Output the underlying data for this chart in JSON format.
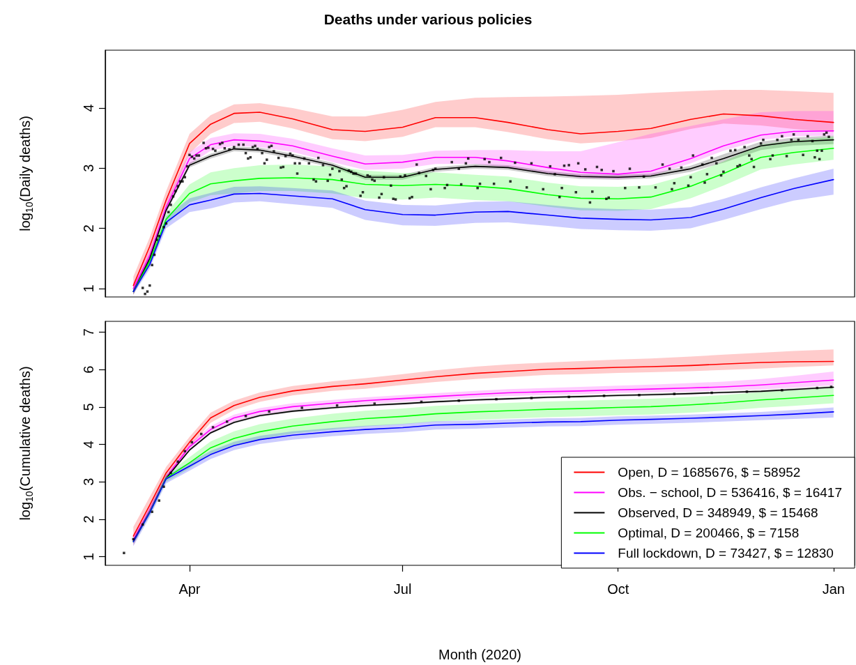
{
  "chart_data": [
    {
      "type": "line",
      "title": "Deaths under various policies",
      "ylabel": "log$_{10}$(Daily deaths)",
      "xlim": [
        "2020-02-25",
        "2021-01-10"
      ],
      "ylim": [
        0.86,
        4.96
      ],
      "yticks": [
        1,
        2,
        3,
        4
      ],
      "tick_labels": "y",
      "legend": false,
      "x": [
        "2020-03-08",
        "2020-03-15",
        "2020-03-22",
        "2020-04-01",
        "2020-04-10",
        "2020-04-20",
        "2020-05-01",
        "2020-05-15",
        "2020-06-01",
        "2020-06-15",
        "2020-07-01",
        "2020-07-15",
        "2020-08-01",
        "2020-08-15",
        "2020-09-01",
        "2020-09-15",
        "2020-10-01",
        "2020-10-15",
        "2020-11-01",
        "2020-11-15",
        "2020-12-01",
        "2020-12-15",
        "2021-01-01"
      ],
      "series": [
        {
          "color": "#ff0000",
          "values": [
            1.05,
            1.7,
            2.47,
            3.41,
            3.73,
            3.91,
            3.93,
            3.82,
            3.64,
            3.61,
            3.68,
            3.84,
            3.84,
            3.76,
            3.64,
            3.57,
            3.61,
            3.66,
            3.81,
            3.9,
            3.87,
            3.81,
            3.76
          ],
          "lower": [
            0.89,
            1.54,
            2.31,
            3.25,
            3.57,
            3.75,
            3.77,
            3.66,
            3.48,
            3.45,
            3.52,
            3.68,
            3.68,
            3.6,
            3.48,
            3.41,
            3.45,
            3.5,
            3.65,
            3.74,
            3.71,
            3.65,
            3.6
          ],
          "upper": [
            1.2,
            1.85,
            2.62,
            3.57,
            3.88,
            4.06,
            4.08,
            4.0,
            3.86,
            3.86,
            3.97,
            4.1,
            4.17,
            4.18,
            4.19,
            4.2,
            4.22,
            4.25,
            4.28,
            4.3,
            4.3,
            4.28,
            4.25
          ]
        },
        {
          "color": "#ff00ff",
          "values": [
            1.0,
            1.55,
            2.35,
            3.16,
            3.39,
            3.47,
            3.45,
            3.37,
            3.2,
            3.07,
            3.1,
            3.18,
            3.18,
            3.12,
            3.01,
            2.93,
            2.9,
            2.95,
            3.16,
            3.37,
            3.55,
            3.61,
            3.62
          ],
          "lower": [
            0.9,
            1.45,
            2.25,
            3.06,
            3.29,
            3.37,
            3.35,
            3.27,
            3.1,
            2.97,
            2.99,
            3.07,
            3.07,
            3.01,
            2.91,
            2.84,
            2.82,
            2.87,
            3.08,
            3.29,
            3.47,
            3.53,
            3.54
          ],
          "upper": [
            1.1,
            1.65,
            2.45,
            3.27,
            3.5,
            3.58,
            3.57,
            3.49,
            3.33,
            3.21,
            3.22,
            3.29,
            3.3,
            3.3,
            3.28,
            3.28,
            3.43,
            3.57,
            3.7,
            3.81,
            3.93,
            3.95,
            3.95
          ]
        },
        {
          "color": "#000000",
          "values": [
            0.95,
            1.5,
            2.3,
            3.05,
            3.2,
            3.32,
            3.3,
            3.2,
            3.05,
            2.85,
            2.85,
            2.98,
            3.03,
            3.01,
            2.91,
            2.86,
            2.85,
            2.87,
            2.99,
            3.16,
            3.37,
            3.44,
            3.47
          ],
          "lower": [
            0.91,
            1.46,
            2.26,
            3.01,
            3.16,
            3.28,
            3.26,
            3.16,
            3.01,
            2.81,
            2.81,
            2.94,
            2.99,
            2.97,
            2.87,
            2.82,
            2.81,
            2.83,
            2.94,
            3.09,
            3.3,
            3.37,
            3.4
          ],
          "upper": [
            0.99,
            1.54,
            2.34,
            3.09,
            3.24,
            3.36,
            3.34,
            3.24,
            3.09,
            2.89,
            2.89,
            3.02,
            3.07,
            3.05,
            2.95,
            2.9,
            2.89,
            2.91,
            3.04,
            3.23,
            3.44,
            3.51,
            3.54
          ]
        },
        {
          "color": "#00ff00",
          "values": [
            0.95,
            1.45,
            2.15,
            2.58,
            2.74,
            2.79,
            2.83,
            2.84,
            2.81,
            2.73,
            2.71,
            2.73,
            2.7,
            2.66,
            2.56,
            2.5,
            2.49,
            2.52,
            2.7,
            2.91,
            3.18,
            3.26,
            3.33
          ],
          "lower": [
            0.9,
            1.38,
            2.05,
            2.43,
            2.55,
            2.58,
            2.62,
            2.62,
            2.58,
            2.5,
            2.48,
            2.51,
            2.47,
            2.45,
            2.36,
            2.3,
            2.29,
            2.32,
            2.5,
            2.71,
            2.98,
            3.06,
            3.14
          ],
          "upper": [
            1.0,
            1.52,
            2.25,
            2.73,
            2.93,
            3.0,
            3.05,
            3.06,
            3.03,
            2.96,
            2.92,
            2.93,
            2.89,
            2.86,
            2.76,
            2.7,
            2.69,
            2.72,
            2.9,
            3.11,
            3.39,
            3.46,
            3.52
          ]
        },
        {
          "color": "#0000ff",
          "values": [
            0.95,
            1.4,
            2.1,
            2.39,
            2.47,
            2.57,
            2.58,
            2.54,
            2.49,
            2.31,
            2.23,
            2.22,
            2.27,
            2.28,
            2.22,
            2.17,
            2.15,
            2.14,
            2.18,
            2.32,
            2.51,
            2.66,
            2.81
          ],
          "lower": [
            0.9,
            1.33,
            2.0,
            2.27,
            2.33,
            2.43,
            2.45,
            2.4,
            2.34,
            2.14,
            2.05,
            2.04,
            2.09,
            2.1,
            2.04,
            1.99,
            1.97,
            1.96,
            2.0,
            2.14,
            2.32,
            2.46,
            2.56
          ],
          "upper": [
            1.0,
            1.47,
            2.2,
            2.5,
            2.59,
            2.69,
            2.7,
            2.67,
            2.63,
            2.46,
            2.39,
            2.38,
            2.44,
            2.45,
            2.39,
            2.34,
            2.32,
            2.31,
            2.35,
            2.49,
            2.68,
            2.83,
            2.99
          ]
        },
        {
          "type": "scatter",
          "marker": "square",
          "color": "#000000",
          "x": [
            "2020-03-12",
            "2020-03-13",
            "2020-03-14",
            "2020-03-15",
            "2020-03-16",
            "2020-03-17",
            "2020-03-18",
            "2020-03-19",
            "2020-03-21",
            "2020-03-22",
            "2020-03-23",
            "2020-03-24",
            "2020-03-25",
            "2020-03-26",
            "2020-03-27",
            "2020-03-28",
            "2020-03-29",
            "2020-03-30",
            "2020-03-31",
            "2020-04-01",
            "2020-04-02",
            "2020-04-03",
            "2020-04-04",
            "2020-04-05",
            "2020-04-07",
            "2020-04-08",
            "2020-04-09",
            "2020-04-11",
            "2020-04-12",
            "2020-04-14",
            "2020-04-15",
            "2020-04-16",
            "2020-04-18",
            "2020-04-20",
            "2020-04-22",
            "2020-04-24",
            "2020-04-25",
            "2020-04-26",
            "2020-04-27",
            "2020-04-28",
            "2020-04-29",
            "2020-04-30",
            "2020-05-02",
            "2020-05-03",
            "2020-05-04",
            "2020-05-05",
            "2020-05-06",
            "2020-05-07",
            "2020-05-09",
            "2020-05-10",
            "2020-05-11",
            "2020-05-12",
            "2020-05-14",
            "2020-05-15",
            "2020-05-16",
            "2020-05-17",
            "2020-05-18",
            "2020-05-20",
            "2020-05-22",
            "2020-05-24",
            "2020-05-25",
            "2020-05-26",
            "2020-05-28",
            "2020-05-30",
            "2020-05-31",
            "2020-06-01",
            "2020-06-04",
            "2020-06-05",
            "2020-06-06",
            "2020-06-07",
            "2020-06-08",
            "2020-06-09",
            "2020-06-10",
            "2020-06-11",
            "2020-06-13",
            "2020-06-14",
            "2020-06-16",
            "2020-06-17",
            "2020-06-18",
            "2020-06-19",
            "2020-06-21",
            "2020-06-22",
            "2020-06-23",
            "2020-06-26",
            "2020-06-27",
            "2020-06-28",
            "2020-06-30",
            "2020-07-02",
            "2020-07-04",
            "2020-07-05",
            "2020-07-07",
            "2020-07-08",
            "2020-07-11",
            "2020-07-13",
            "2020-07-14",
            "2020-07-15",
            "2020-07-19",
            "2020-07-20",
            "2020-07-22",
            "2020-07-25",
            "2020-07-26",
            "2020-07-28",
            "2020-07-29",
            "2020-08-02",
            "2020-08-03",
            "2020-08-05",
            "2020-08-07",
            "2020-08-09",
            "2020-08-12",
            "2020-08-16",
            "2020-08-18",
            "2020-08-23",
            "2020-08-25",
            "2020-08-30",
            "2020-09-02",
            "2020-09-04",
            "2020-09-06",
            "2020-09-07",
            "2020-09-08",
            "2020-09-10",
            "2020-09-13",
            "2020-09-14",
            "2020-09-17",
            "2020-09-19",
            "2020-09-20",
            "2020-09-22",
            "2020-09-24",
            "2020-09-26",
            "2020-09-27",
            "2020-09-29",
            "2020-10-04",
            "2020-10-06",
            "2020-10-10",
            "2020-10-12",
            "2020-10-17",
            "2020-10-20",
            "2020-10-23",
            "2020-10-24",
            "2020-10-25",
            "2020-10-28",
            "2020-10-31",
            "2020-11-01",
            "2020-11-02",
            "2020-11-06",
            "2020-11-07",
            "2020-11-08",
            "2020-11-10",
            "2020-11-12",
            "2020-11-14",
            "2020-11-15",
            "2020-11-18",
            "2020-11-20",
            "2020-11-21",
            "2020-11-22",
            "2020-11-24",
            "2020-11-26",
            "2020-11-27",
            "2020-11-28",
            "2020-12-01",
            "2020-12-02",
            "2020-12-05",
            "2020-12-06",
            "2020-12-08",
            "2020-12-10",
            "2020-12-12",
            "2020-12-14",
            "2020-12-15",
            "2020-12-17",
            "2020-12-19",
            "2020-12-21",
            "2020-12-23",
            "2020-12-24",
            "2020-12-25",
            "2020-12-26",
            "2020-12-27",
            "2020-12-28",
            "2020-12-29",
            "2020-12-30"
          ],
          "values": [
            1.01,
            0.91,
            0.95,
            1.05,
            1.39,
            1.56,
            1.81,
            1.87,
            2.02,
            2.08,
            2.27,
            2.39,
            2.53,
            2.62,
            2.7,
            2.78,
            2.78,
            2.85,
            3.03,
            3.22,
            3.19,
            3.16,
            3.21,
            3.21,
            3.42,
            3.33,
            3.34,
            3.32,
            3.29,
            3.4,
            3.42,
            3.33,
            3.31,
            3.35,
            3.39,
            3.39,
            3.25,
            3.16,
            3.18,
            3.35,
            3.37,
            3.32,
            3.25,
            3.08,
            3.14,
            3.35,
            3.37,
            3.28,
            3.17,
            3.01,
            3.02,
            3.2,
            3.24,
            3.21,
            3.08,
            2.91,
            3.08,
            3.16,
            3.08,
            2.81,
            2.78,
            3.17,
            3.05,
            2.79,
            2.89,
            2.99,
            2.95,
            2.81,
            2.67,
            2.7,
            2.96,
            2.94,
            2.91,
            2.91,
            2.54,
            2.6,
            2.88,
            2.86,
            2.81,
            2.79,
            2.51,
            2.57,
            2.85,
            2.71,
            2.49,
            2.48,
            2.86,
            2.88,
            2.5,
            2.52,
            3.06,
            2.92,
            2.87,
            2.65,
            2.97,
            2.99,
            2.67,
            2.72,
            3.1,
            2.99,
            2.73,
            3.08,
            3.16,
            2.67,
            2.74,
            3.15,
            3.1,
            2.74,
            3.17,
            2.78,
            3.09,
            2.68,
            3.08,
            2.65,
            3.03,
            2.9,
            2.52,
            2.67,
            3.04,
            3.05,
            2.6,
            3.08,
            2.98,
            2.43,
            2.61,
            3.02,
            2.97,
            2.49,
            2.51,
            2.95,
            2.67,
            2.99,
            2.68,
            2.86,
            2.68,
            3.06,
            2.99,
            2.65,
            2.75,
            3.01,
            2.71,
            2.85,
            3.21,
            3.06,
            2.76,
            2.9,
            3.17,
            3.08,
            2.88,
            2.94,
            3.29,
            3.3,
            3.03,
            3.05,
            3.35,
            3.21,
            3.15,
            3.02,
            3.41,
            3.47,
            3.15,
            3.21,
            3.47,
            3.53,
            3.2,
            3.47,
            3.56,
            3.47,
            3.22,
            3.53,
            3.45,
            3.18,
            3.29,
            3.15,
            3.29,
            3.56,
            3.59,
            3.52
          ]
        }
      ]
    },
    {
      "type": "line",
      "xlabel": "Month (2020)",
      "ylabel": "log$_{10}$(Cumulative deaths)",
      "xlim": [
        "2020-02-25",
        "2021-01-10"
      ],
      "ylim": [
        0.77,
        7.29
      ],
      "yticks": [
        1,
        2,
        3,
        4,
        5,
        6,
        7
      ],
      "xticks": [
        {
          "value": "2020-04-01",
          "label": "Apr"
        },
        {
          "value": "2020-07-01",
          "label": "Jul"
        },
        {
          "value": "2020-10-01",
          "label": "Oct"
        },
        {
          "value": "2021-01-01",
          "label": "Jan"
        }
      ],
      "legend": "bottom right",
      "x": [
        "2020-03-08",
        "2020-03-15",
        "2020-03-22",
        "2020-04-01",
        "2020-04-10",
        "2020-04-20",
        "2020-05-01",
        "2020-05-15",
        "2020-06-01",
        "2020-06-15",
        "2020-07-01",
        "2020-07-15",
        "2020-08-01",
        "2020-08-15",
        "2020-09-01",
        "2020-09-15",
        "2020-10-01",
        "2020-10-15",
        "2020-11-01",
        "2020-11-15",
        "2020-12-01",
        "2020-12-15",
        "2021-01-01"
      ],
      "series": [
        {
          "name": "Open, D = 1685676, $ = 58952",
          "color": "#ff0000",
          "values": [
            1.55,
            2.38,
            3.24,
            4.06,
            4.71,
            5.04,
            5.26,
            5.43,
            5.55,
            5.62,
            5.72,
            5.81,
            5.9,
            5.95,
            6.01,
            6.03,
            6.06,
            6.08,
            6.11,
            6.15,
            6.19,
            6.21,
            6.22
          ],
          "lower": [
            1.3,
            2.2,
            3.1,
            3.92,
            4.58,
            4.92,
            5.14,
            5.31,
            5.43,
            5.49,
            5.59,
            5.67,
            5.75,
            5.8,
            5.86,
            5.88,
            5.91,
            5.93,
            5.96,
            5.99,
            6.03,
            6.07,
            6.11
          ],
          "upper": [
            1.8,
            2.6,
            3.4,
            4.2,
            4.85,
            5.17,
            5.39,
            5.56,
            5.69,
            5.77,
            5.88,
            5.98,
            6.08,
            6.14,
            6.19,
            6.23,
            6.27,
            6.3,
            6.35,
            6.4,
            6.45,
            6.5,
            6.54
          ]
        },
        {
          "name": "Obs. − school, D = 536416, $ = 16417",
          "color": "#ff00ff",
          "values": [
            1.45,
            2.25,
            3.12,
            3.94,
            4.4,
            4.71,
            4.88,
            5.01,
            5.1,
            5.17,
            5.23,
            5.28,
            5.34,
            5.38,
            5.41,
            5.43,
            5.46,
            5.48,
            5.51,
            5.54,
            5.59,
            5.65,
            5.72
          ],
          "lower": [
            1.35,
            2.15,
            3.04,
            3.85,
            4.31,
            4.62,
            4.79,
            4.92,
            5.01,
            5.08,
            5.14,
            5.19,
            5.25,
            5.29,
            5.32,
            5.34,
            5.37,
            5.39,
            5.41,
            5.44,
            5.47,
            5.52,
            5.58
          ],
          "upper": [
            1.6,
            2.35,
            3.2,
            4.03,
            4.49,
            4.8,
            4.97,
            5.1,
            5.19,
            5.26,
            5.32,
            5.37,
            5.43,
            5.48,
            5.51,
            5.54,
            5.57,
            5.6,
            5.64,
            5.68,
            5.75,
            5.83,
            5.95
          ]
        },
        {
          "name": "Observed, D = 348949, $ = 15468",
          "color": "#000000",
          "values": [
            1.42,
            2.2,
            3.1,
            3.85,
            4.31,
            4.59,
            4.77,
            4.89,
            4.98,
            5.04,
            5.09,
            5.14,
            5.19,
            5.22,
            5.26,
            5.28,
            5.31,
            5.33,
            5.36,
            5.39,
            5.42,
            5.47,
            5.53
          ],
          "lower": [
            1.39,
            2.17,
            3.07,
            3.82,
            4.28,
            4.56,
            4.74,
            4.86,
            4.95,
            5.01,
            5.06,
            5.11,
            5.16,
            5.19,
            5.23,
            5.25,
            5.28,
            5.3,
            5.33,
            5.36,
            5.39,
            5.44,
            5.5
          ],
          "upper": [
            1.45,
            2.23,
            3.13,
            3.88,
            4.34,
            4.62,
            4.8,
            4.92,
            5.01,
            5.07,
            5.12,
            5.17,
            5.22,
            5.25,
            5.29,
            5.31,
            5.34,
            5.36,
            5.39,
            5.42,
            5.45,
            5.5,
            5.56
          ]
        },
        {
          "name": "Optimal, D = 200466, $ = 7158",
          "color": "#00ff00",
          "values": [
            1.4,
            2.2,
            3.1,
            3.51,
            3.91,
            4.16,
            4.34,
            4.49,
            4.61,
            4.69,
            4.75,
            4.82,
            4.87,
            4.9,
            4.94,
            4.96,
            4.99,
            5.01,
            5.06,
            5.11,
            5.19,
            5.24,
            5.31
          ],
          "lower": [
            1.35,
            2.1,
            3.0,
            3.36,
            3.74,
            3.97,
            4.14,
            4.29,
            4.4,
            4.48,
            4.54,
            4.61,
            4.66,
            4.69,
            4.73,
            4.75,
            4.78,
            4.8,
            4.85,
            4.9,
            4.98,
            5.03,
            5.1
          ],
          "upper": [
            1.45,
            2.3,
            3.2,
            3.66,
            4.08,
            4.35,
            4.54,
            4.69,
            4.82,
            4.9,
            4.96,
            5.03,
            5.08,
            5.11,
            5.15,
            5.17,
            5.2,
            5.22,
            5.27,
            5.32,
            5.4,
            5.45,
            5.51
          ]
        },
        {
          "name": "Full lockdown, D = 73427, $ = 12830",
          "color": "#0000ff",
          "values": [
            1.4,
            2.18,
            3.08,
            3.42,
            3.73,
            3.97,
            4.13,
            4.25,
            4.34,
            4.4,
            4.45,
            4.52,
            4.54,
            4.57,
            4.6,
            4.61,
            4.65,
            4.67,
            4.7,
            4.73,
            4.77,
            4.81,
            4.87
          ],
          "lower": [
            1.28,
            2.06,
            2.96,
            3.3,
            3.61,
            3.85,
            4.01,
            4.13,
            4.22,
            4.28,
            4.33,
            4.4,
            4.42,
            4.45,
            4.48,
            4.49,
            4.53,
            4.55,
            4.58,
            4.61,
            4.65,
            4.68,
            4.72
          ],
          "upper": [
            1.5,
            2.28,
            3.18,
            3.52,
            3.83,
            4.07,
            4.23,
            4.35,
            4.44,
            4.5,
            4.55,
            4.62,
            4.64,
            4.67,
            4.7,
            4.71,
            4.75,
            4.77,
            4.8,
            4.83,
            4.87,
            4.92,
            4.99
          ]
        },
        {
          "type": "scatter",
          "marker": "square",
          "color": "#000000",
          "x": [
            "2020-03-04",
            "2020-03-08",
            "2020-03-12",
            "2020-03-16",
            "2020-03-19",
            "2020-03-21",
            "2020-03-24",
            "2020-03-27",
            "2020-03-30",
            "2020-04-02",
            "2020-04-06",
            "2020-04-11",
            "2020-04-17",
            "2020-04-25",
            "2020-05-05",
            "2020-05-19",
            "2020-06-03",
            "2020-06-19",
            "2020-07-09",
            "2020-07-25",
            "2020-08-10",
            "2020-08-25",
            "2020-09-10",
            "2020-09-25",
            "2020-10-10",
            "2020-10-25",
            "2020-11-10",
            "2020-11-25",
            "2020-12-10",
            "2020-12-25",
            "2020-12-31"
          ],
          "values": [
            1.1,
            1.47,
            1.86,
            2.2,
            2.5,
            2.87,
            3.24,
            3.54,
            3.82,
            4.06,
            4.28,
            4.46,
            4.61,
            4.76,
            4.88,
            4.98,
            5.04,
            5.09,
            5.14,
            5.17,
            5.21,
            5.24,
            5.27,
            5.3,
            5.32,
            5.35,
            5.38,
            5.41,
            5.45,
            5.51,
            5.54
          ]
        }
      ]
    }
  ]
}
